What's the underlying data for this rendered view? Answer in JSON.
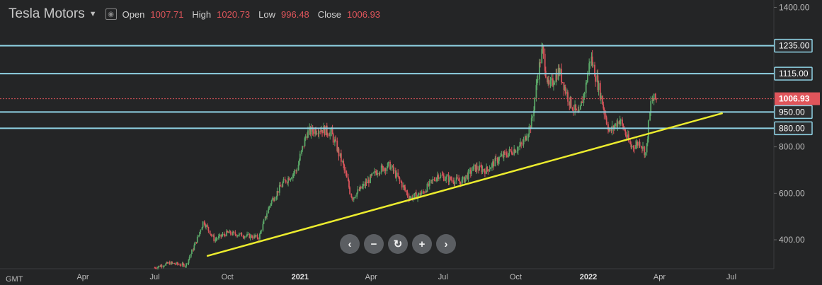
{
  "header": {
    "title": "Tesla Motors",
    "open_label": "Open",
    "open_value": "1007.71",
    "high_label": "High",
    "high_value": "1020.73",
    "low_label": "Low",
    "low_value": "996.48",
    "close_label": "Close",
    "close_value": "1006.93"
  },
  "nav": {
    "icons": [
      "chevron-left-icon",
      "minus-icon",
      "reset-icon",
      "plus-icon",
      "chevron-right-icon"
    ]
  },
  "timezone_label": "GMT",
  "colors": {
    "bg": "#242526",
    "up": "#5aa567",
    "down": "#d9545b",
    "hline": "#8fd2e4",
    "trend": "#ecec2e",
    "price": "#e0555b"
  },
  "chart_data": {
    "type": "candlestick",
    "yticks": [
      "400.00",
      "600.00",
      "800.00",
      "1400.00"
    ],
    "xticks": [
      {
        "label": "Apr",
        "date": "2020-04-01"
      },
      {
        "label": "Jul",
        "date": "2020-07-01"
      },
      {
        "label": "Oct",
        "date": "2020-10-01"
      },
      {
        "label": "2021",
        "date": "2021-01-01",
        "bold": true
      },
      {
        "label": "Apr",
        "date": "2021-04-01"
      },
      {
        "label": "Jul",
        "date": "2021-07-01"
      },
      {
        "label": "Oct",
        "date": "2021-10-01"
      },
      {
        "label": "2022",
        "date": "2022-01-01",
        "bold": true
      },
      {
        "label": "Apr",
        "date": "2022-04-01"
      },
      {
        "label": "Jul",
        "date": "2022-07-01"
      }
    ],
    "horizontal_levels": [
      {
        "label": "1235.00",
        "value": 1235
      },
      {
        "label": "1115.00",
        "value": 1115
      },
      {
        "label": "950.00",
        "value": 950
      },
      {
        "label": "880.00",
        "value": 880
      }
    ],
    "last_price": {
      "label": "1006.93",
      "value": 1006.93
    },
    "trendline": [
      {
        "date": "2020-09-05",
        "value": 330
      },
      {
        "date": "2022-06-20",
        "value": 945
      }
    ],
    "closes": [
      {
        "date": "2020-07-01",
        "close": 280
      },
      {
        "date": "2020-07-20",
        "close": 300
      },
      {
        "date": "2020-08-10",
        "close": 290
      },
      {
        "date": "2020-08-25",
        "close": 410
      },
      {
        "date": "2020-09-01",
        "close": 480
      },
      {
        "date": "2020-09-15",
        "close": 400
      },
      {
        "date": "2020-10-01",
        "close": 430
      },
      {
        "date": "2020-10-20",
        "close": 420
      },
      {
        "date": "2020-11-10",
        "close": 410
      },
      {
        "date": "2020-11-25",
        "close": 560
      },
      {
        "date": "2020-12-10",
        "close": 640
      },
      {
        "date": "2020-12-28",
        "close": 700
      },
      {
        "date": "2021-01-10",
        "close": 860
      },
      {
        "date": "2021-01-26",
        "close": 880
      },
      {
        "date": "2021-02-10",
        "close": 860
      },
      {
        "date": "2021-02-25",
        "close": 720
      },
      {
        "date": "2021-03-08",
        "close": 580
      },
      {
        "date": "2021-03-25",
        "close": 640
      },
      {
        "date": "2021-04-10",
        "close": 700
      },
      {
        "date": "2021-04-25",
        "close": 720
      },
      {
        "date": "2021-05-10",
        "close": 640
      },
      {
        "date": "2021-05-20",
        "close": 580
      },
      {
        "date": "2021-06-05",
        "close": 600
      },
      {
        "date": "2021-06-25",
        "close": 680
      },
      {
        "date": "2021-07-10",
        "close": 660
      },
      {
        "date": "2021-07-25",
        "close": 650
      },
      {
        "date": "2021-08-10",
        "close": 710
      },
      {
        "date": "2021-08-25",
        "close": 700
      },
      {
        "date": "2021-09-10",
        "close": 750
      },
      {
        "date": "2021-09-25",
        "close": 780
      },
      {
        "date": "2021-10-10",
        "close": 810
      },
      {
        "date": "2021-10-22",
        "close": 910
      },
      {
        "date": "2021-10-28",
        "close": 1080
      },
      {
        "date": "2021-11-04",
        "close": 1225
      },
      {
        "date": "2021-11-12",
        "close": 1050
      },
      {
        "date": "2021-11-25",
        "close": 1130
      },
      {
        "date": "2021-12-08",
        "close": 1000
      },
      {
        "date": "2021-12-20",
        "close": 930
      },
      {
        "date": "2021-12-30",
        "close": 1080
      },
      {
        "date": "2022-01-04",
        "close": 1190
      },
      {
        "date": "2022-01-15",
        "close": 1050
      },
      {
        "date": "2022-01-28",
        "close": 860
      },
      {
        "date": "2022-02-10",
        "close": 920
      },
      {
        "date": "2022-02-24",
        "close": 800
      },
      {
        "date": "2022-03-08",
        "close": 820
      },
      {
        "date": "2022-03-15",
        "close": 770
      },
      {
        "date": "2022-03-22",
        "close": 1000
      },
      {
        "date": "2022-03-29",
        "close": 1006.93
      }
    ]
  }
}
